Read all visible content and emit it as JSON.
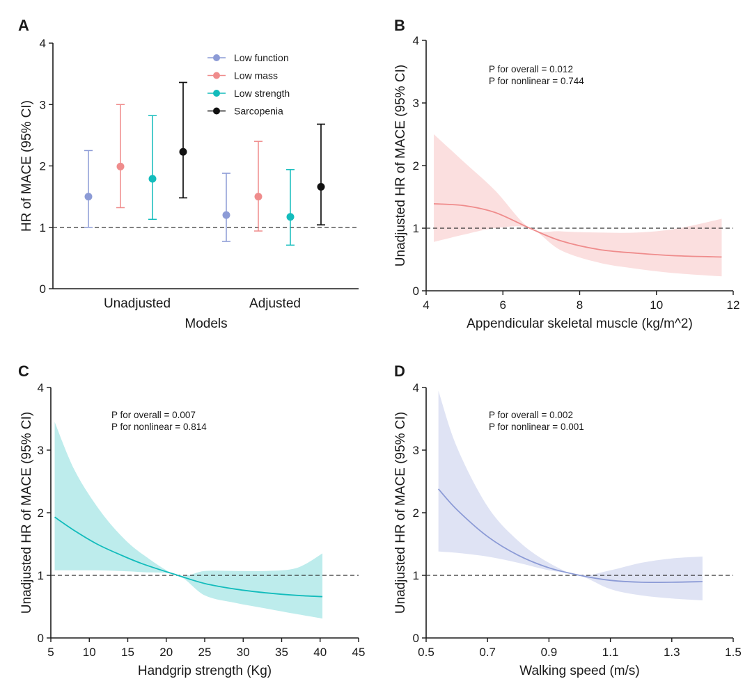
{
  "colors": {
    "low_function": "#8c9bd6",
    "low_mass": "#ef8c8c",
    "low_strength": "#13bcbc",
    "sarcopenia": "#111111"
  },
  "chart_data": [
    {
      "panel": "A",
      "type": "scatter",
      "xlabel": "Models",
      "ylabel": "HR of MACE (95% CI)",
      "categories": [
        "Unadjusted",
        "Adjusted"
      ],
      "ylim": [
        0,
        4
      ],
      "yticks": [
        "0",
        "1",
        "2",
        "3",
        "4"
      ],
      "reference_line": 1,
      "legend_position": "top-center",
      "series": [
        {
          "name": "Low function",
          "color": "#8c9bd6",
          "points": [
            {
              "category": "Unadjusted",
              "hr": 1.5,
              "lower": 1.0,
              "upper": 2.25
            },
            {
              "category": "Adjusted",
              "hr": 1.2,
              "lower": 0.77,
              "upper": 1.88
            }
          ]
        },
        {
          "name": "Low mass",
          "color": "#ef8c8c",
          "points": [
            {
              "category": "Unadjusted",
              "hr": 1.99,
              "lower": 1.32,
              "upper": 3.0
            },
            {
              "category": "Adjusted",
              "hr": 1.5,
              "lower": 0.94,
              "upper": 2.4
            }
          ]
        },
        {
          "name": "Low strength",
          "color": "#13bcbc",
          "points": [
            {
              "category": "Unadjusted",
              "hr": 1.79,
              "lower": 1.13,
              "upper": 2.82
            },
            {
              "category": "Adjusted",
              "hr": 1.17,
              "lower": 0.71,
              "upper": 1.94
            }
          ]
        },
        {
          "name": "Sarcopenia",
          "color": "#111111",
          "points": [
            {
              "category": "Unadjusted",
              "hr": 2.23,
              "lower": 1.48,
              "upper": 3.36
            },
            {
              "category": "Adjusted",
              "hr": 1.66,
              "lower": 1.04,
              "upper": 2.68
            }
          ]
        }
      ]
    },
    {
      "panel": "B",
      "type": "line",
      "xlabel": "Appendicular skeletal muscle (kg/m^2)",
      "ylabel": "Unadjusted HR of MACE (95% CI)",
      "xlim": [
        4,
        12
      ],
      "ylim": [
        0,
        4
      ],
      "xticks": [
        "4",
        "6",
        "8",
        "10",
        "12"
      ],
      "yticks": [
        "0",
        "1",
        "2",
        "3",
        "4"
      ],
      "reference_line": 1,
      "color": "#ef8c8c",
      "annotations": [
        "P for overall = 0.012",
        "P for nonlinear = 0.744"
      ],
      "x": [
        4.2,
        5.0,
        5.8,
        6.7,
        7.5,
        8.5,
        9.5,
        10.5,
        11.7
      ],
      "hr": [
        1.39,
        1.36,
        1.25,
        1.0,
        0.8,
        0.66,
        0.6,
        0.56,
        0.54
      ],
      "lower": [
        0.78,
        0.9,
        1.0,
        1.0,
        0.65,
        0.45,
        0.35,
        0.28,
        0.23
      ],
      "upper": [
        2.5,
        2.05,
        1.6,
        1.0,
        0.95,
        0.93,
        0.93,
        0.99,
        1.15
      ]
    },
    {
      "panel": "C",
      "type": "line",
      "xlabel": "Handgrip strength (Kg)",
      "ylabel": "Unadjusted HR of MACE (95% CI)",
      "xlim": [
        5,
        45
      ],
      "ylim": [
        0,
        4
      ],
      "xticks": [
        "5",
        "10",
        "15",
        "20",
        "25",
        "30",
        "35",
        "40",
        "45"
      ],
      "yticks": [
        "0",
        "1",
        "2",
        "3",
        "4"
      ],
      "reference_line": 1,
      "color": "#13bcbc",
      "annotations": [
        "P for overall = 0.007",
        "P for nonlinear = 0.814"
      ],
      "x": [
        5.5,
        8,
        11,
        14,
        17,
        21.5,
        25,
        29,
        33,
        37,
        40.3
      ],
      "hr": [
        1.93,
        1.72,
        1.5,
        1.33,
        1.18,
        1.0,
        0.87,
        0.78,
        0.72,
        0.68,
        0.66
      ],
      "lower": [
        1.08,
        1.08,
        1.08,
        1.07,
        1.05,
        1.0,
        0.68,
        0.56,
        0.47,
        0.38,
        0.31
      ],
      "upper": [
        3.45,
        2.7,
        2.1,
        1.65,
        1.33,
        1.0,
        1.07,
        1.07,
        1.07,
        1.12,
        1.35
      ]
    },
    {
      "panel": "D",
      "type": "line",
      "xlabel": "Walking speed (m/s)",
      "ylabel": "Unadjusted HR of MACE (95% CI)",
      "xlim": [
        0.5,
        1.5
      ],
      "ylim": [
        0,
        4
      ],
      "xticks": [
        "0.5",
        "0.7",
        "0.9",
        "1.1",
        "1.3",
        "1.5"
      ],
      "yticks": [
        "0",
        "1",
        "2",
        "3",
        "4"
      ],
      "reference_line": 1,
      "color": "#8c9bd6",
      "annotations": [
        "P for overall = 0.002",
        "P for nonlinear = 0.001"
      ],
      "x": [
        0.54,
        0.6,
        0.7,
        0.8,
        0.9,
        1.0,
        1.1,
        1.2,
        1.3,
        1.4
      ],
      "hr": [
        2.38,
        2.05,
        1.62,
        1.32,
        1.12,
        1.0,
        0.92,
        0.89,
        0.89,
        0.9
      ],
      "lower": [
        1.38,
        1.36,
        1.3,
        1.2,
        1.08,
        1.0,
        0.78,
        0.68,
        0.63,
        0.6
      ],
      "upper": [
        3.95,
        3.05,
        2.1,
        1.55,
        1.2,
        1.0,
        1.08,
        1.2,
        1.27,
        1.3
      ]
    }
  ]
}
